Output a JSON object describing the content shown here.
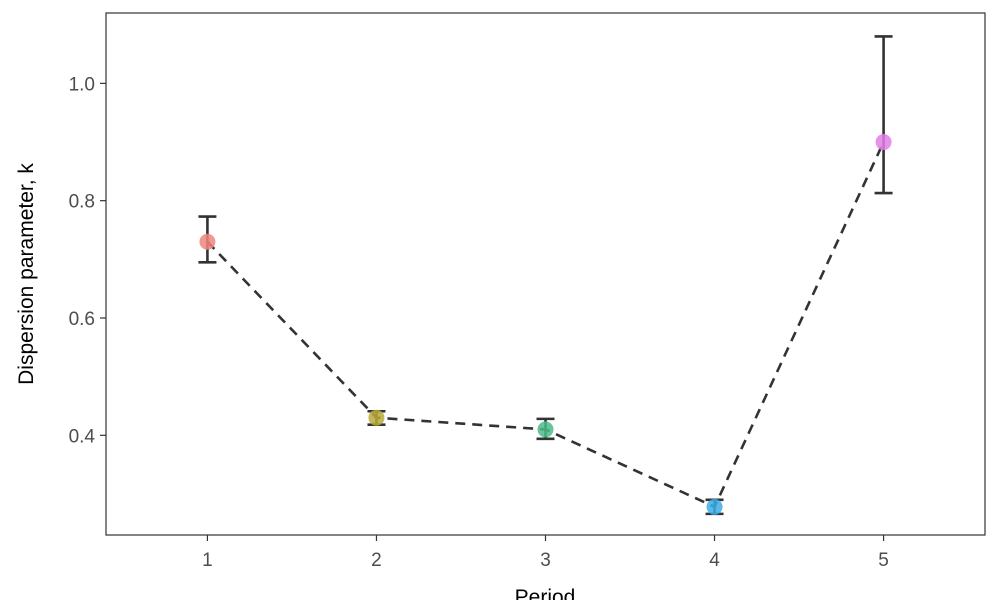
{
  "chart_data": {
    "type": "scatter",
    "xlabel": "Period",
    "ylabel": "Dispersion parameter, k",
    "x_ticks": [
      "1",
      "2",
      "3",
      "4",
      "5"
    ],
    "y_ticks": [
      "0.4",
      "0.6",
      "0.8",
      "1.0"
    ],
    "xlim": [
      0.4,
      5.6
    ],
    "ylim": [
      0.23,
      1.12
    ],
    "grid": false,
    "legend": "none",
    "connector": "dashed-line",
    "points": [
      {
        "x": 1,
        "y": 0.73,
        "lower": 0.695,
        "upper": 0.773,
        "color": "#F0867E"
      },
      {
        "x": 2,
        "y": 0.43,
        "lower": 0.418,
        "upper": 0.441,
        "color": "#B7A93A"
      },
      {
        "x": 3,
        "y": 0.41,
        "lower": 0.394,
        "upper": 0.428,
        "color": "#4CBB8A"
      },
      {
        "x": 4,
        "y": 0.278,
        "lower": 0.266,
        "upper": 0.29,
        "color": "#3BAEE6"
      },
      {
        "x": 5,
        "y": 0.9,
        "lower": 0.813,
        "upper": 1.08,
        "color": "#E27FE8"
      }
    ]
  }
}
